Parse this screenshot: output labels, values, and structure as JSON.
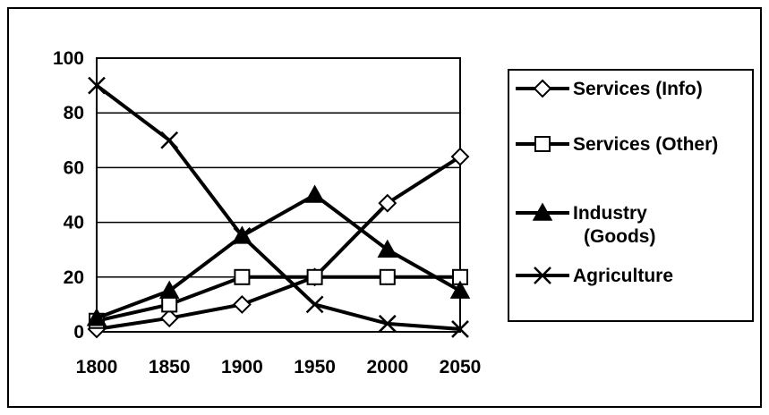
{
  "chart_data": {
    "type": "line",
    "x": [
      1800,
      1850,
      1900,
      1950,
      2000,
      2050
    ],
    "ylim": [
      0,
      100
    ],
    "y_ticks": [
      0,
      20,
      40,
      60,
      80,
      100
    ],
    "grid": true,
    "legend_position": "right",
    "series": [
      {
        "name": "Services (Info)",
        "marker": "diamond",
        "values": [
          1,
          5,
          10,
          20,
          47,
          64
        ]
      },
      {
        "name": "Services (Other)",
        "marker": "square",
        "values": [
          4,
          10,
          20,
          20,
          20,
          20
        ]
      },
      {
        "name": "Industry (Goods)",
        "name_lines": [
          "Industry",
          "(Goods)"
        ],
        "marker": "triangle",
        "values": [
          5,
          15,
          35,
          50,
          30,
          15
        ]
      },
      {
        "name": "Agriculture",
        "marker": "x",
        "values": [
          90,
          70,
          35,
          10,
          3,
          1
        ]
      }
    ],
    "line_color": "#000000",
    "background_color": "#ffffff"
  }
}
